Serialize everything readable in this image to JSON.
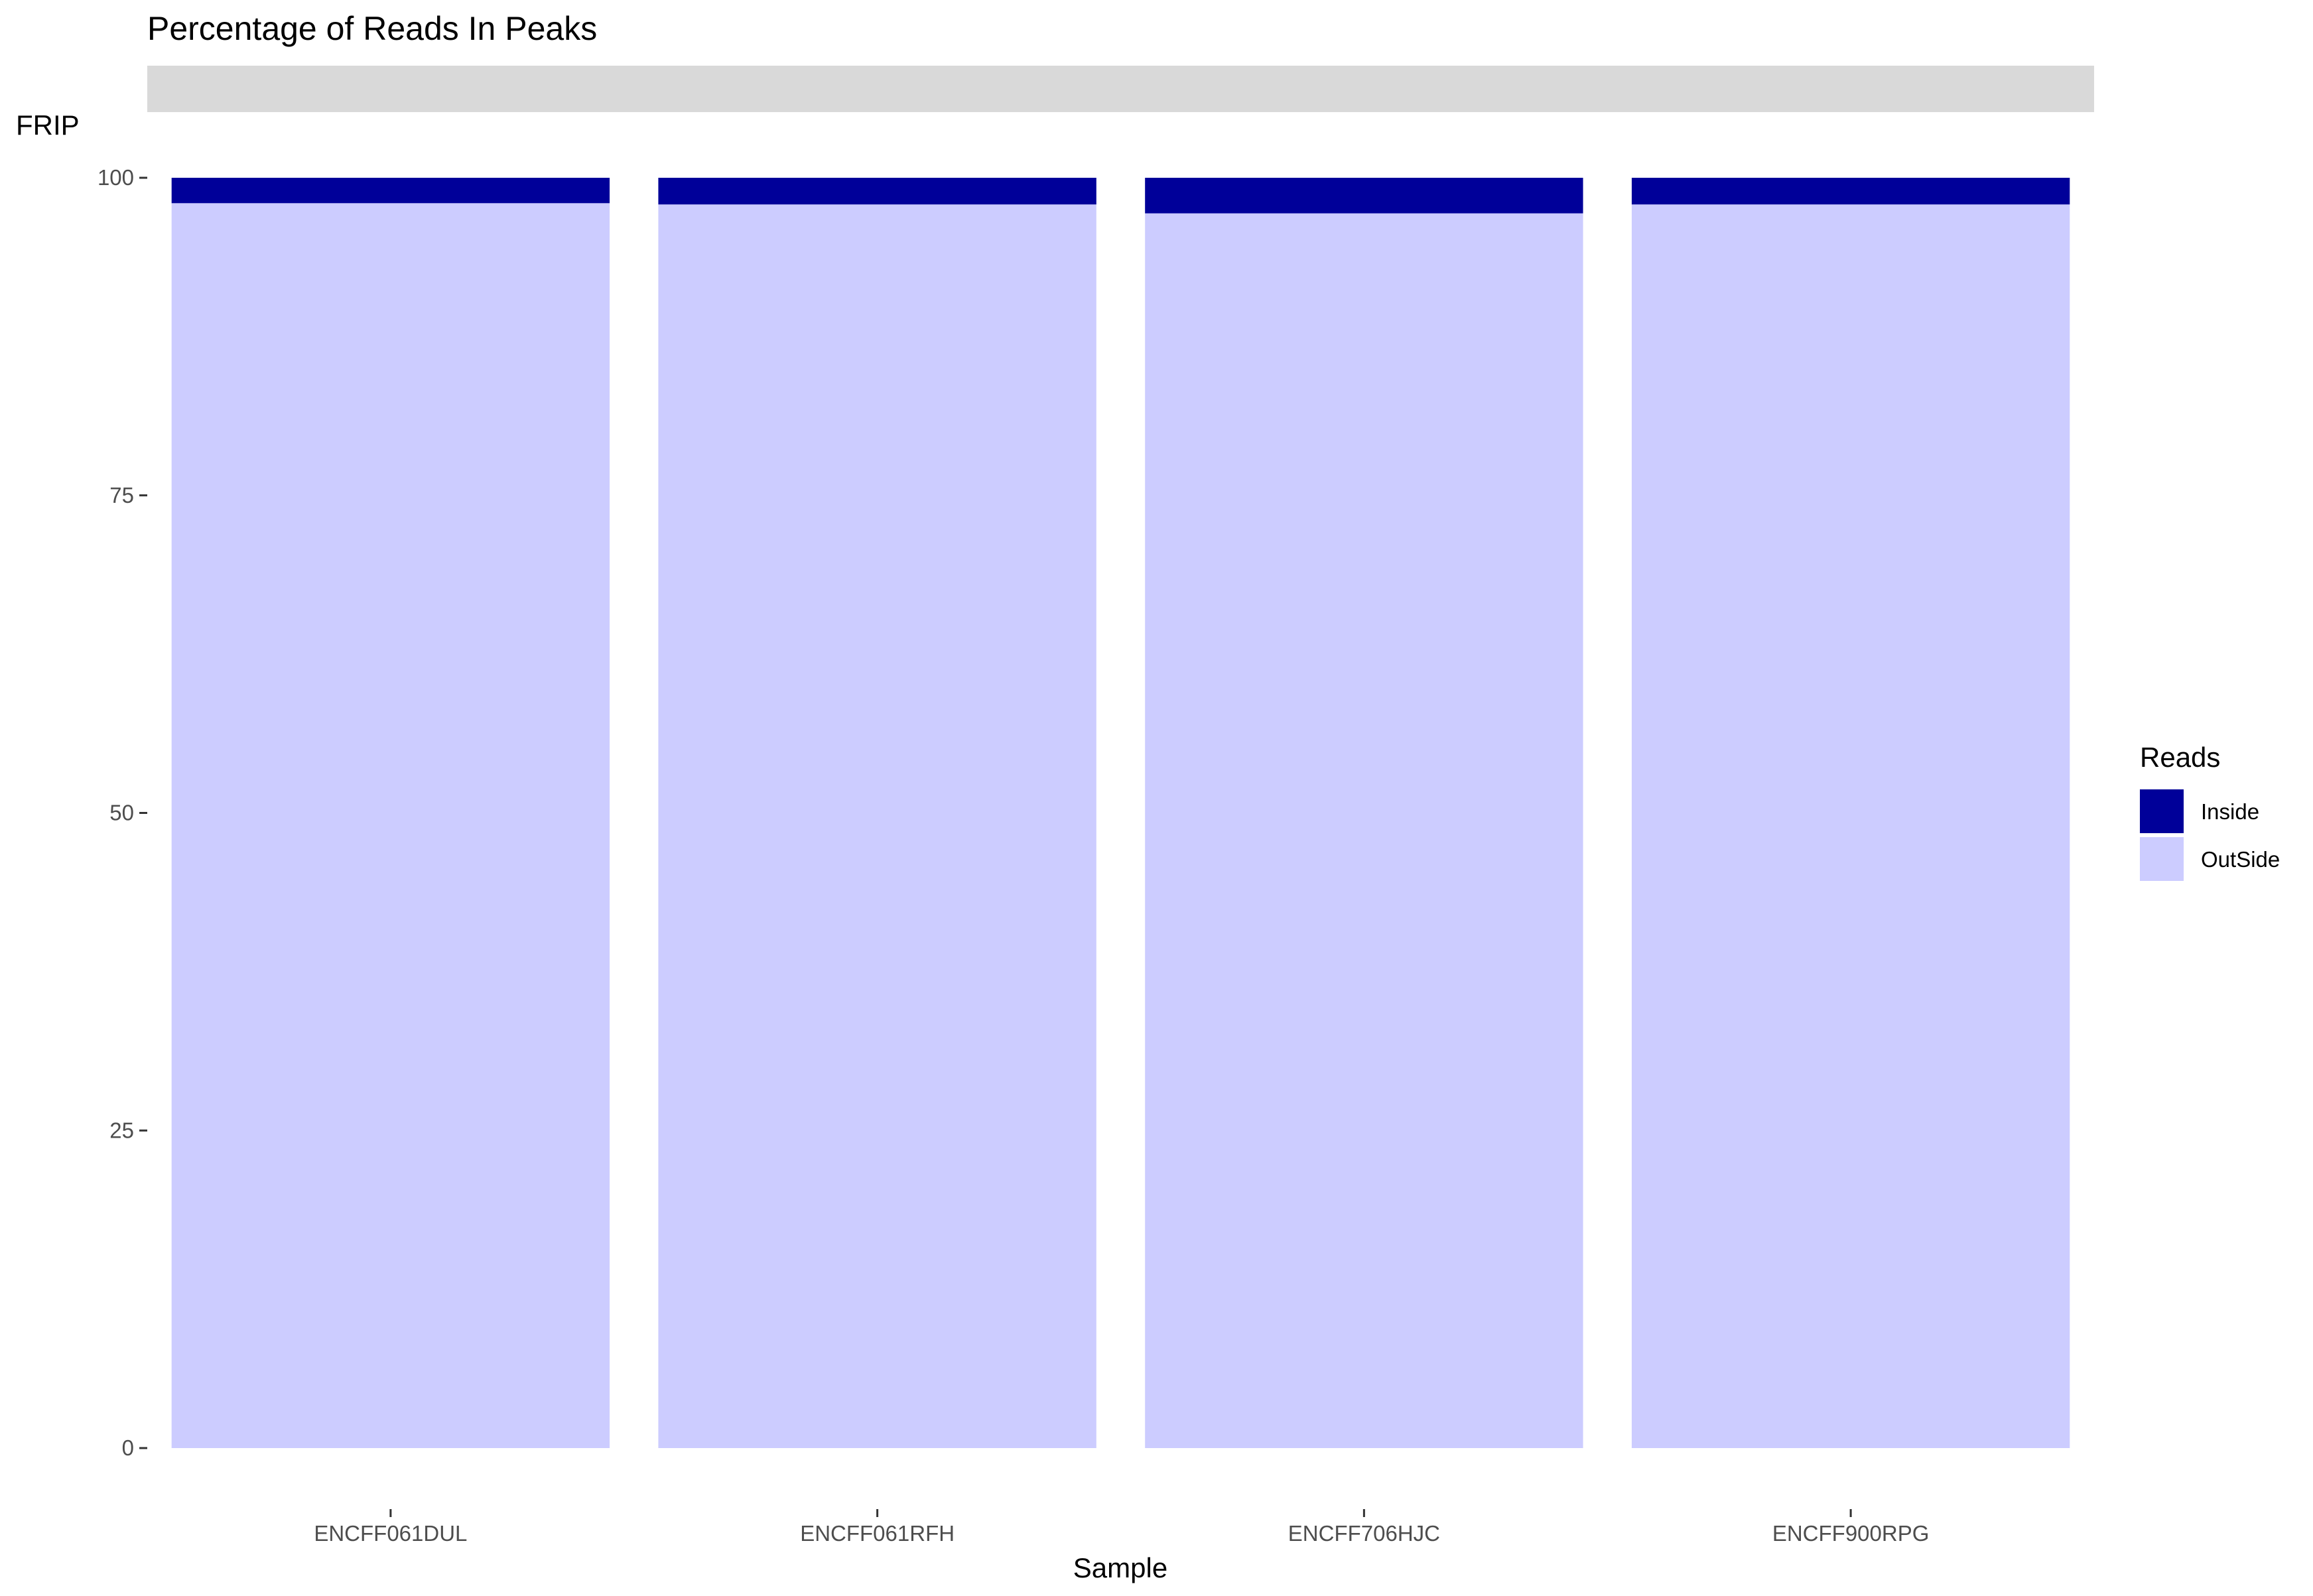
{
  "chart_data": {
    "type": "bar",
    "stacked": true,
    "title": "Percentage of Reads In Peaks",
    "xlabel": "Sample",
    "ylabel": "FRIP",
    "categories": [
      "ENCFF061DUL",
      "ENCFF061RFH",
      "ENCFF706HJC",
      "ENCFF900RPG"
    ],
    "series": [
      {
        "name": "OutSide",
        "values": [
          98.0,
          97.9,
          97.2,
          97.9
        ],
        "color": "#ccccff"
      },
      {
        "name": "Inside",
        "values": [
          2.0,
          2.1,
          2.8,
          2.1
        ],
        "color": "#000099"
      }
    ],
    "ylim": [
      0,
      100
    ],
    "yticks": [
      0,
      25,
      50,
      75,
      100
    ],
    "facet_strip": "",
    "legend": {
      "title": "Reads",
      "entries": [
        "Inside",
        "OutSide"
      ],
      "position": "right"
    },
    "grid": false,
    "colors": {
      "inside": "#000099",
      "outside": "#ccccff",
      "strip": "#d9d9d9"
    }
  }
}
